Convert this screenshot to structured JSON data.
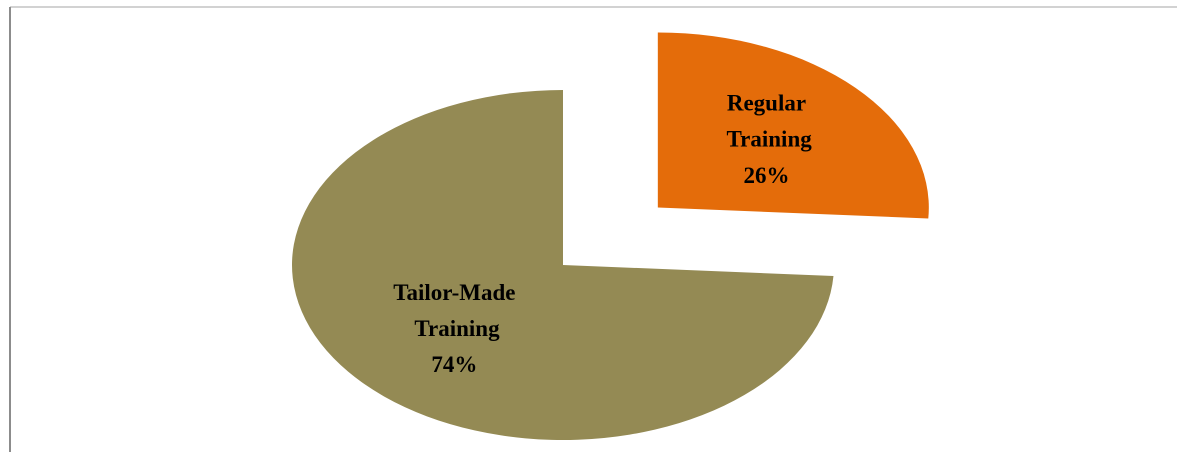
{
  "chart_data": {
    "type": "pie",
    "categories": [
      "Regular Training",
      "Tailor-Made Training"
    ],
    "values": [
      26,
      74
    ],
    "value_labels": [
      "26%",
      "74%"
    ],
    "colors": [
      "#e46c0a",
      "#948a54"
    ]
  }
}
